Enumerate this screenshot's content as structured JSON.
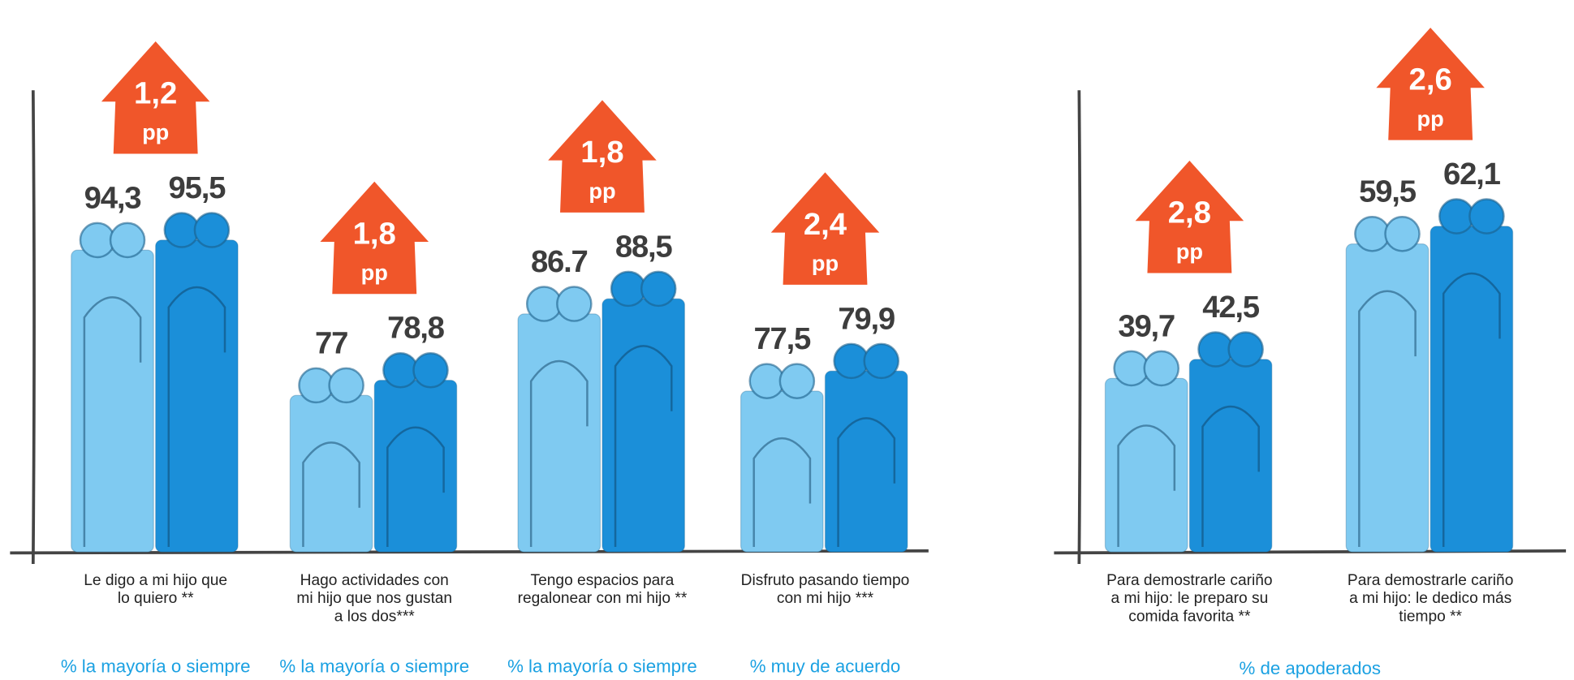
{
  "chart_data": [
    {
      "type": "bar",
      "categories": [
        "Le digo a mi hijo que\nlo quiero **",
        "Hago actividades con\nmi hijo que nos gustan\na los dos***",
        "Tengo espacios para\nregalonear con mi hijo **",
        "Disfruto pasando tiempo\ncon mi hijo ***"
      ],
      "category_notes": [
        "% la mayoría o  siempre",
        "% la mayoría o  siempre",
        "% la mayoría o  siempre",
        "%  muy de acuerdo"
      ],
      "series": [
        {
          "color": "#7fcaf1",
          "values": [
            94.3,
            77,
            86.7,
            77.5
          ],
          "value_labels": [
            "94,3",
            "77",
            "86.7",
            "77,5"
          ]
        },
        {
          "color": "#1b8fd9",
          "values": [
            95.5,
            78.8,
            88.5,
            79.9
          ],
          "value_labels": [
            "95,5",
            "78,8",
            "88,5",
            "79,9"
          ]
        }
      ],
      "annotations": [
        {
          "label": "1,2",
          "unit": "pp"
        },
        {
          "label": "1,8",
          "unit": "pp"
        },
        {
          "label": "1,8",
          "unit": "pp"
        },
        {
          "label": "2,4",
          "unit": "pp"
        }
      ],
      "annotation_color": "#f0562a",
      "ylim": [
        55,
        110
      ]
    },
    {
      "type": "bar",
      "categories": [
        "Para demostrarle cariño\na mi hijo: le preparo su\ncomida favorita **",
        "Para demostrarle cariño\na mi hijo: le dedico más\ntiempo **"
      ],
      "xlabel": "% de apoderados",
      "series": [
        {
          "color": "#7fcaf1",
          "values": [
            39.7,
            59.5
          ],
          "value_labels": [
            "39,7",
            "59,5"
          ]
        },
        {
          "color": "#1b8fd9",
          "values": [
            42.5,
            62.1
          ],
          "value_labels": [
            "42,5",
            "62,1"
          ]
        }
      ],
      "annotations": [
        {
          "label": "2,8",
          "unit": "pp"
        },
        {
          "label": "2,6",
          "unit": "pp"
        }
      ],
      "annotation_color": "#f0562a",
      "ylim": [
        10,
        78
      ]
    }
  ]
}
